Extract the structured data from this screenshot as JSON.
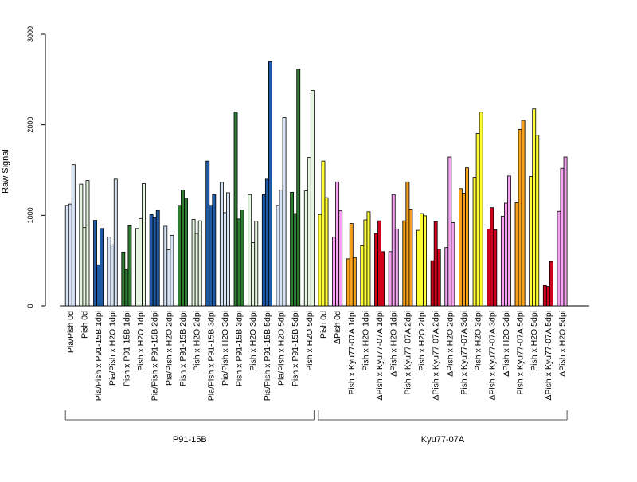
{
  "chart_data": {
    "type": "bar",
    "title": "",
    "xlabel": "",
    "ylabel": "Raw Signal",
    "ylim": [
      0,
      3000
    ],
    "yticks": [
      0,
      1000,
      2000,
      3000
    ],
    "grid": false,
    "legend": "none",
    "bars_per_group": 3,
    "categories": [
      {
        "label": "Pia/Pish 0d",
        "color": "#d6e4f5",
        "values": [
          1110,
          1125,
          1560
        ]
      },
      {
        "label": "Pish 0d",
        "color": "#e6f5e0",
        "values": [
          1345,
          865,
          1385
        ]
      },
      {
        "label": "Pia/Pish x P91-15B 1dpi",
        "color": "#1f5aa6",
        "values": [
          945,
          455,
          855
        ]
      },
      {
        "label": "Pia/Pish x H2O 1dpi",
        "color": "#d6e4f5",
        "values": [
          760,
          675,
          1400
        ]
      },
      {
        "label": "Pish x P91-15B 1dpi",
        "color": "#2e7d32",
        "values": [
          595,
          400,
          885
        ]
      },
      {
        "label": "Pish x H2O 1dpi",
        "color": "#e6f5e0",
        "values": [
          855,
          965,
          1350
        ]
      },
      {
        "label": "Pia/Pish x P91-15B 2dpi",
        "color": "#1f5aa6",
        "values": [
          1010,
          975,
          1055
        ]
      },
      {
        "label": "Pia/Pish x H2O 2dpi",
        "color": "#d6e4f5",
        "values": [
          880,
          620,
          780
        ]
      },
      {
        "label": "Pish x P91-15B 2dpi",
        "color": "#2e7d32",
        "values": [
          1110,
          1280,
          1190
        ]
      },
      {
        "label": "Pish x H2O 2dpi",
        "color": "#e6f5e0",
        "values": [
          955,
          800,
          940
        ]
      },
      {
        "label": "Pia/Pish x P91-15B 3dpi",
        "color": "#1f5aa6",
        "values": [
          1600,
          1110,
          1230
        ]
      },
      {
        "label": "Pia/Pish x H2O 3dpi",
        "color": "#d6e4f5",
        "values": [
          1365,
          1030,
          1250
        ]
      },
      {
        "label": "Pish x P91-15B 3dpi",
        "color": "#2e7d32",
        "values": [
          2140,
          960,
          1060
        ]
      },
      {
        "label": "Pish x H2O 3dpi",
        "color": "#e6f5e0",
        "values": [
          1230,
          700,
          935
        ]
      },
      {
        "label": "Pia/Pish x P91-15B 5dpi",
        "color": "#1f5aa6",
        "values": [
          1230,
          1400,
          2700
        ]
      },
      {
        "label": "Pia/Pish x H2O 5dpi",
        "color": "#d6e4f5",
        "values": [
          1110,
          1280,
          2080
        ]
      },
      {
        "label": "Pish x P91-15B 5dpi",
        "color": "#2e7d32",
        "values": [
          1255,
          1020,
          2615
        ]
      },
      {
        "label": "Pish x H2O 5dpi",
        "color": "#e6f5e0",
        "values": [
          1270,
          1640,
          2380
        ]
      },
      {
        "label": "Pish 0d",
        "color": "#ffff33",
        "values": [
          1010,
          1600,
          1195
        ]
      },
      {
        "label": "ΔPish 0d",
        "color": "#f5a3f0",
        "values": [
          760,
          1370,
          1050
        ]
      },
      {
        "label": "Pish x Kyu77-07A 1dpi",
        "color": "#f7a11a",
        "values": [
          520,
          910,
          535
        ]
      },
      {
        "label": "Pish x H2O 1dpi",
        "color": "#ffff33",
        "values": [
          665,
          950,
          1040
        ]
      },
      {
        "label": "ΔPish x Kyu77-07A 1dpi",
        "color": "#d0021b",
        "values": [
          800,
          940,
          600
        ]
      },
      {
        "label": "ΔPish x H2O 1dpi",
        "color": "#f5a3f0",
        "values": [
          600,
          1230,
          850
        ]
      },
      {
        "label": "Pish x Kyu77-07A 2dpi",
        "color": "#f7a11a",
        "values": [
          940,
          1370,
          1070
        ]
      },
      {
        "label": "Pish x H2O 2dpi",
        "color": "#ffff33",
        "values": [
          835,
          1020,
          995
        ]
      },
      {
        "label": "ΔPish x Kyu77-07A 2dpi",
        "color": "#d0021b",
        "values": [
          500,
          930,
          630
        ]
      },
      {
        "label": "ΔPish x H2O 2dpi",
        "color": "#f5a3f0",
        "values": [
          645,
          1645,
          920
        ]
      },
      {
        "label": "Pish x Kyu77-07A 3dpi",
        "color": "#f7a11a",
        "values": [
          1295,
          1245,
          1525
        ]
      },
      {
        "label": "Pish x H2O 3dpi",
        "color": "#ffff33",
        "values": [
          1420,
          1905,
          2140
        ]
      },
      {
        "label": "ΔPish x Kyu77-07A 3dpi",
        "color": "#d0021b",
        "values": [
          850,
          1085,
          840
        ]
      },
      {
        "label": "ΔPish x H2O 3dpi",
        "color": "#f5a3f0",
        "values": [
          990,
          1135,
          1435
        ]
      },
      {
        "label": "Pish x Kyu77-07A 5dpi",
        "color": "#f7a11a",
        "values": [
          1140,
          1950,
          2050
        ]
      },
      {
        "label": "Pish x H2O 5dpi",
        "color": "#ffff33",
        "values": [
          1430,
          2175,
          1885
        ]
      },
      {
        "label": "ΔPish x Kyu77-07A 5dpi",
        "color": "#d0021b",
        "values": [
          225,
          215,
          490
        ]
      },
      {
        "label": "ΔPish x H2O 5dpi",
        "color": "#f5a3f0",
        "values": [
          1045,
          1520,
          1645
        ]
      }
    ],
    "groups": [
      {
        "label": "P91-15B",
        "first": 0,
        "last": 17
      },
      {
        "label": "Kyu77-07A",
        "first": 18,
        "last": 35
      }
    ]
  }
}
